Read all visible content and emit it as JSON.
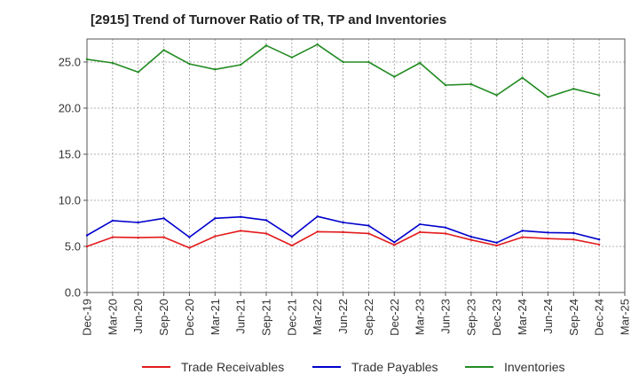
{
  "chart_data": {
    "type": "line",
    "title": "[2915]  Trend of Turnover Ratio of TR, TP and Inventories",
    "xlabel": "",
    "ylabel": "",
    "ylim": [
      0,
      27.5
    ],
    "yticks": [
      "0.0",
      "5.0",
      "10.0",
      "15.0",
      "20.0",
      "25.0"
    ],
    "ytick_values": [
      0,
      5,
      10,
      15,
      20,
      25
    ],
    "grid": true,
    "legend": "bottom",
    "x": [
      "Dec-19",
      "Mar-20",
      "Jun-20",
      "Sep-20",
      "Dec-20",
      "Mar-21",
      "Jun-21",
      "Sep-21",
      "Dec-21",
      "Mar-22",
      "Jun-22",
      "Sep-22",
      "Dec-22",
      "Mar-23",
      "Jun-23",
      "Sep-23",
      "Dec-23",
      "Mar-24",
      "Jun-24",
      "Sep-24",
      "Dec-24"
    ],
    "xticks": [
      "Dec-19",
      "Mar-20",
      "Jun-20",
      "Sep-20",
      "Dec-20",
      "Mar-21",
      "Jun-21",
      "Sep-21",
      "Dec-21",
      "Mar-22",
      "Jun-22",
      "Sep-22",
      "Dec-22",
      "Mar-23",
      "Jun-23",
      "Sep-23",
      "Dec-23",
      "Mar-24",
      "Jun-24",
      "Sep-24",
      "Dec-24",
      "Mar-25"
    ],
    "series": [
      {
        "name": "Trade Receivables",
        "color": "#e31a1c",
        "values": [
          5.0,
          6.0,
          5.95,
          6.0,
          4.85,
          6.1,
          6.7,
          6.4,
          5.1,
          6.6,
          6.55,
          6.4,
          5.15,
          6.55,
          6.4,
          5.7,
          5.1,
          6.0,
          5.85,
          5.75,
          5.2
        ]
      },
      {
        "name": "Trade Payables",
        "color": "#0000cc",
        "values": [
          6.2,
          7.8,
          7.6,
          8.05,
          6.0,
          8.05,
          8.2,
          7.85,
          6.05,
          8.25,
          7.6,
          7.25,
          5.45,
          7.4,
          7.05,
          6.05,
          5.4,
          6.7,
          6.5,
          6.45,
          5.75
        ]
      },
      {
        "name": "Inventories",
        "color": "#228b22",
        "values": [
          25.3,
          24.9,
          23.9,
          26.3,
          24.8,
          24.2,
          24.7,
          26.8,
          25.5,
          26.9,
          25.0,
          25.0,
          23.4,
          24.9,
          22.5,
          22.6,
          21.4,
          23.3,
          21.2,
          22.1,
          21.4
        ]
      }
    ]
  }
}
